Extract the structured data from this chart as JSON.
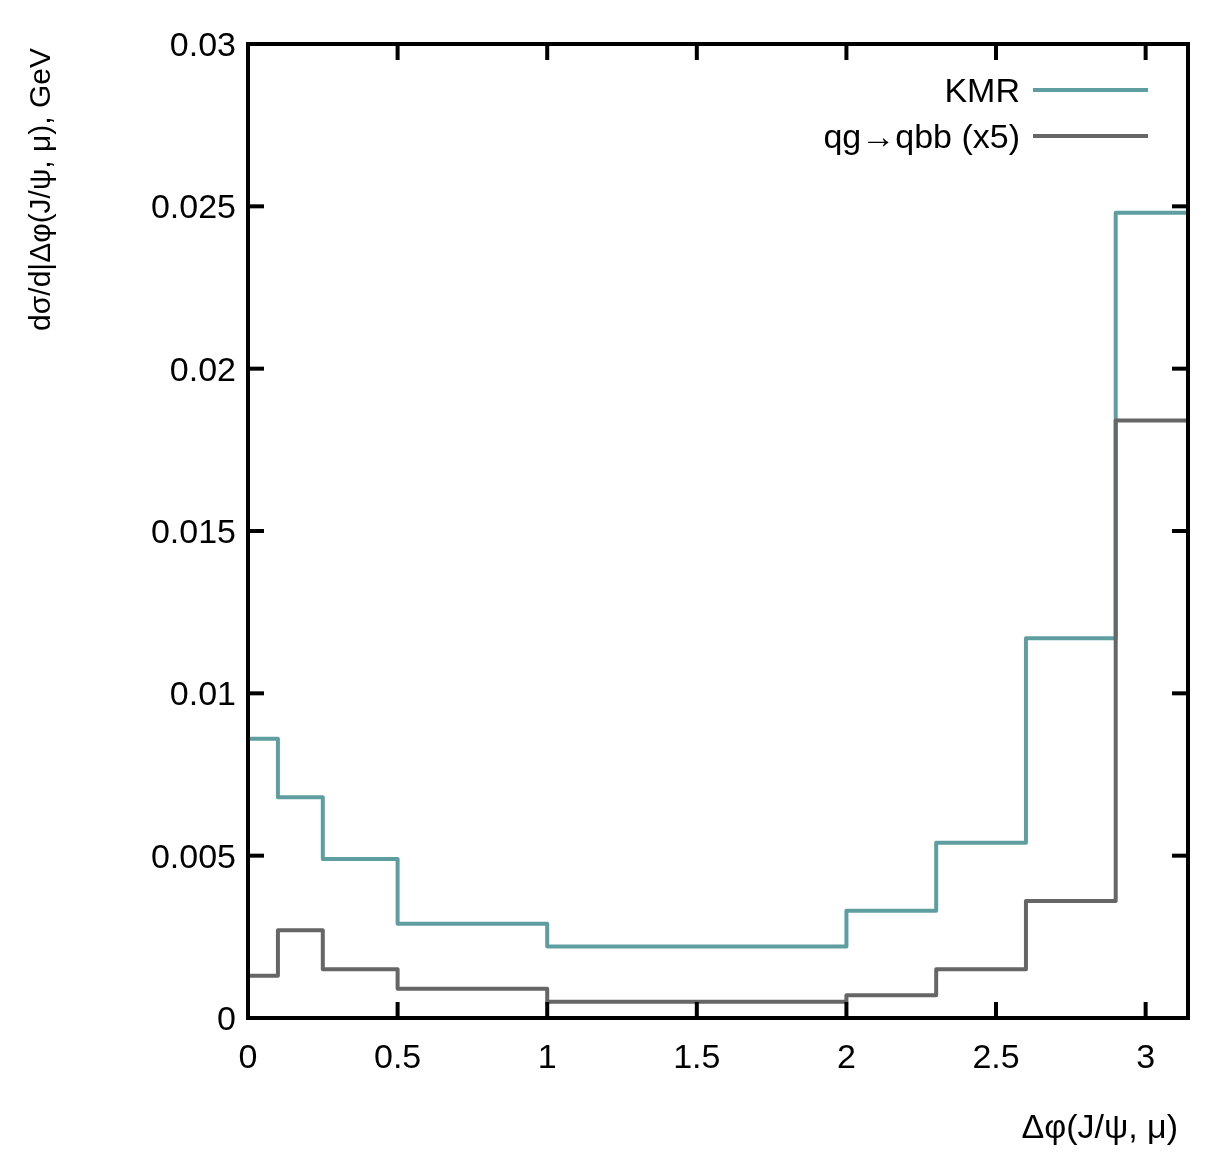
{
  "chart_data": {
    "type": "histogram",
    "xlabel": "Δφ(J/ψ, μ)",
    "ylabel": "dσ/d|Δφ(J/ψ, μ), GeV",
    "bins": [
      0,
      0.1,
      0.25,
      0.5,
      1,
      2,
      2.3,
      2.6,
      2.9,
      3.1416
    ],
    "series": [
      {
        "name": "KMR",
        "color": "#5f9ea0",
        "values": [
          0.0086,
          0.0068,
          0.0049,
          0.0029,
          0.0022,
          0.0033,
          0.0054,
          0.0117,
          0.0248
        ]
      },
      {
        "name": "qg→qbb (x5)",
        "color": "#666666",
        "values": [
          0.0013,
          0.0027,
          0.0015,
          0.0009,
          0.0005,
          0.0007,
          0.0015,
          0.0036,
          0.0184
        ]
      }
    ],
    "xlim": [
      0,
      3.1416
    ],
    "ylim": [
      0,
      0.03
    ],
    "xticks": [
      0,
      0.5,
      1,
      1.5,
      2,
      2.5,
      3
    ],
    "yticks": [
      0,
      0.005,
      0.01,
      0.015,
      0.02,
      0.025,
      0.03
    ],
    "legend": "top right",
    "grid": false
  }
}
